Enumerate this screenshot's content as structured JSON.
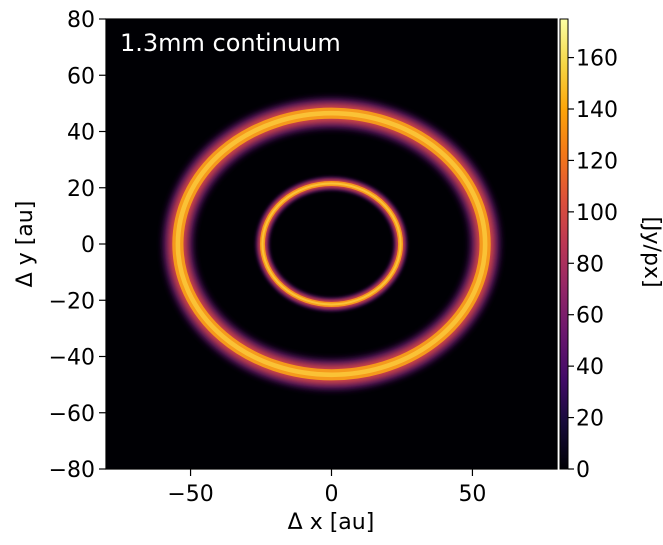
{
  "chart_data": {
    "type": "heatmap",
    "title": "",
    "annotation": "1.3mm continuum",
    "xlabel": "Δ x [au]",
    "ylabel": "Δ y [au]",
    "xlim": [
      -80,
      80
    ],
    "ylim": [
      -80,
      80
    ],
    "x_ticks": [
      -50,
      0,
      50
    ],
    "x_tick_labels": [
      "−50",
      "0",
      "50"
    ],
    "y_ticks": [
      -80,
      -60,
      -40,
      -20,
      0,
      20,
      40,
      60,
      80
    ],
    "y_tick_labels": [
      "−80",
      "−60",
      "−40",
      "−20",
      "0",
      "20",
      "40",
      "60",
      "80"
    ],
    "colorbar": {
      "label": "[Jy/px]",
      "range": [
        0,
        175
      ],
      "ticks": [
        0,
        20,
        40,
        60,
        80,
        100,
        120,
        140,
        160
      ],
      "tick_labels": [
        "0",
        "20",
        "40",
        "60",
        "80",
        "100",
        "120",
        "140",
        "160"
      ],
      "colormap": "inferno"
    },
    "rings": [
      {
        "name": "inner ring",
        "center": [
          0,
          0
        ],
        "radius_x": 24.5,
        "radius_y": 21.5,
        "width": 1.6,
        "peak": 170
      },
      {
        "name": "outer ring",
        "center": [
          0,
          0
        ],
        "radius_x": 54.5,
        "radius_y": 46.5,
        "width": 3.6,
        "peak": 155
      }
    ],
    "grid": false,
    "background_value": 0
  }
}
